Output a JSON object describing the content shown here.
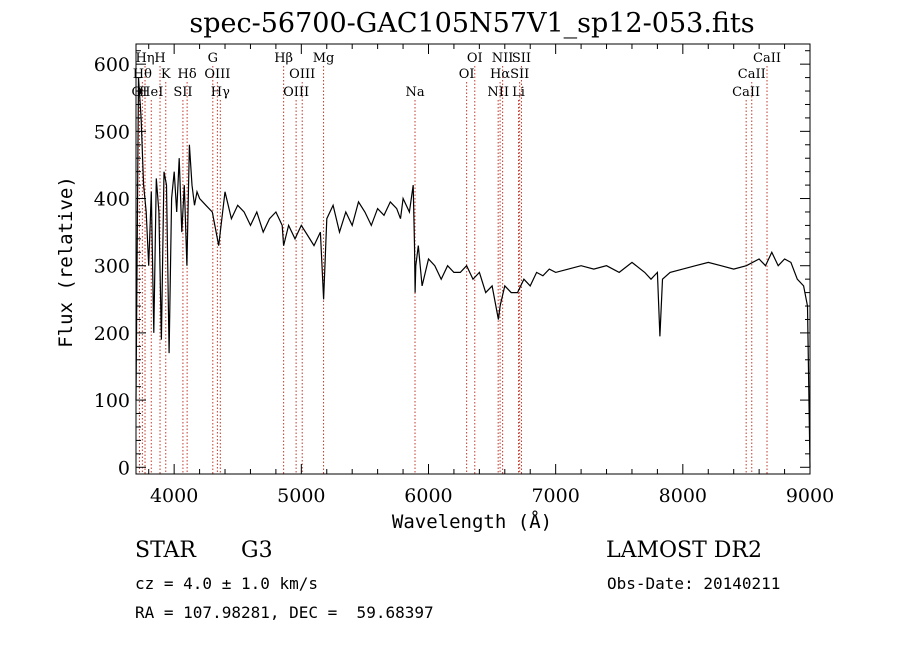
{
  "chart_data": {
    "type": "line",
    "title": "spec-56700-GAC105N57V1_sp12-053.fits",
    "xlabel": "Wavelength (Å)",
    "ylabel": "Flux (relative)",
    "xlim": [
      3700,
      9000
    ],
    "ylim": [
      -10,
      630
    ],
    "xticks": [
      4000,
      5000,
      6000,
      7000,
      8000,
      9000
    ],
    "yticks": [
      0,
      100,
      200,
      300,
      400,
      500,
      600
    ],
    "series": [
      {
        "color": "#000000",
        "x": [
          3700,
          3720,
          3740,
          3760,
          3780,
          3800,
          3820,
          3840,
          3860,
          3880,
          3900,
          3920,
          3940,
          3960,
          3980,
          4000,
          4020,
          4040,
          4060,
          4080,
          4100,
          4120,
          4140,
          4160,
          4180,
          4200,
          4250,
          4300,
          4350,
          4400,
          4450,
          4500,
          4550,
          4600,
          4650,
          4700,
          4750,
          4800,
          4850,
          4861,
          4900,
          4950,
          5000,
          5050,
          5100,
          5150,
          5175,
          5200,
          5250,
          5300,
          5350,
          5400,
          5450,
          5500,
          5550,
          5600,
          5650,
          5700,
          5750,
          5780,
          5800,
          5850,
          5880,
          5890,
          5895,
          5900,
          5920,
          5950,
          6000,
          6050,
          6100,
          6150,
          6200,
          6250,
          6300,
          6350,
          6400,
          6450,
          6500,
          6550,
          6563,
          6600,
          6650,
          6700,
          6750,
          6800,
          6850,
          6900,
          6950,
          7000,
          7100,
          7200,
          7300,
          7400,
          7500,
          7600,
          7700,
          7750,
          7800,
          7820,
          7840,
          7900,
          8000,
          8100,
          8200,
          8300,
          8400,
          8500,
          8600,
          8650,
          8700,
          8750,
          8800,
          8850,
          8900,
          8950,
          8980,
          9000
        ],
        "y": [
          100,
          580,
          520,
          420,
          380,
          300,
          410,
          200,
          430,
          380,
          190,
          440,
          420,
          170,
          400,
          440,
          380,
          460,
          350,
          420,
          300,
          480,
          420,
          390,
          410,
          400,
          390,
          380,
          330,
          410,
          370,
          390,
          380,
          360,
          380,
          350,
          370,
          380,
          360,
          330,
          360,
          340,
          360,
          345,
          330,
          350,
          250,
          370,
          390,
          350,
          380,
          360,
          395,
          380,
          360,
          385,
          375,
          395,
          385,
          370,
          400,
          380,
          420,
          330,
          260,
          300,
          330,
          270,
          310,
          300,
          280,
          300,
          290,
          290,
          300,
          280,
          290,
          260,
          270,
          220,
          240,
          270,
          260,
          260,
          280,
          270,
          290,
          285,
          295,
          290,
          295,
          300,
          295,
          300,
          290,
          305,
          290,
          280,
          290,
          195,
          280,
          290,
          295,
          300,
          305,
          300,
          295,
          300,
          310,
          300,
          320,
          300,
          310,
          305,
          280,
          270,
          240,
          0
        ]
      }
    ],
    "spectral_lines": [
      {
        "label": "OI",
        "x": 3727,
        "row": 3
      },
      {
        "label": "Hθ",
        "x": 3750,
        "row": 2
      },
      {
        "label": "Hη",
        "x": 3771,
        "row": 1
      },
      {
        "label": "HeI",
        "x": 3820,
        "row": 3
      },
      {
        "label": "H",
        "x": 3889,
        "row": 1
      },
      {
        "label": "K",
        "x": 3934,
        "row": 2
      },
      {
        "label": "SII",
        "x": 4069,
        "row": 3
      },
      {
        "label": "Hδ",
        "x": 4102,
        "row": 2
      },
      {
        "label": "G",
        "x": 4304,
        "row": 1
      },
      {
        "label": "OIII",
        "x": 4340,
        "row": 2
      },
      {
        "label": "Hγ",
        "x": 4363,
        "row": 3
      },
      {
        "label": "Hβ",
        "x": 4861,
        "row": 1
      },
      {
        "label": "OIII",
        "x": 4959,
        "row": 3
      },
      {
        "label": "OIII",
        "x": 5007,
        "row": 2
      },
      {
        "label": "Mg",
        "x": 5175,
        "row": 1
      },
      {
        "label": "Na",
        "x": 5894,
        "row": 3
      },
      {
        "label": "OI",
        "x": 6300,
        "row": 2
      },
      {
        "label": "OI",
        "x": 6364,
        "row": 1
      },
      {
        "label": "NII",
        "x": 6548,
        "row": 3
      },
      {
        "label": "Hα",
        "x": 6563,
        "row": 2
      },
      {
        "label": "NII",
        "x": 6583,
        "row": 1
      },
      {
        "label": "SII",
        "x": 6717,
        "row": 2
      },
      {
        "label": "Li",
        "x": 6708,
        "row": 3
      },
      {
        "label": "SII",
        "x": 6731,
        "row": 1
      },
      {
        "label": "CaII",
        "x": 8498,
        "row": 3
      },
      {
        "label": "CaII",
        "x": 8542,
        "row": 2
      },
      {
        "label": "CaII",
        "x": 8662,
        "row": 1
      }
    ]
  },
  "info": {
    "object_class": "STAR",
    "subclass": "G3",
    "survey": "LAMOST DR2",
    "cz": "cz = 4.0 ± 1.0 km/s",
    "obs_date": "Obs-Date: 20140211",
    "coords": "RA = 107.98281, DEC =  59.68397"
  },
  "colors": {
    "spectrum": "#000000",
    "line_markers": "#c0392b"
  }
}
